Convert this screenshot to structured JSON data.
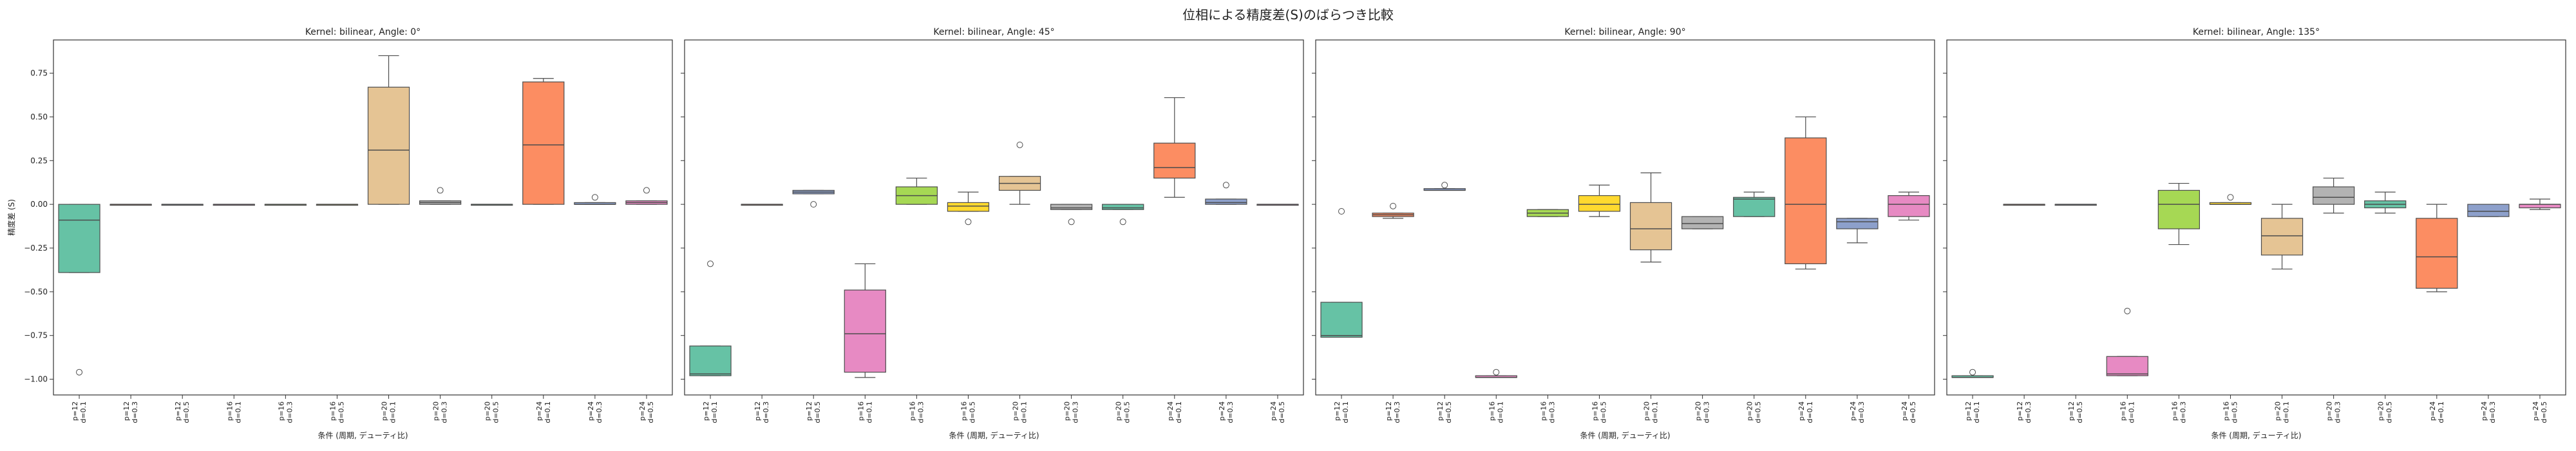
{
  "figure": {
    "title": "位相による精度差(S)のばらつき比較"
  },
  "shared": {
    "ylabel": "精度差 (S)",
    "xlabel": "条件 (周期, デューティ比)",
    "yticks": [
      "0.75",
      "0.50",
      "0.25",
      "0.00",
      "−0.25",
      "−0.50",
      "−0.75",
      "−1.00"
    ],
    "categories": [
      [
        "p=12",
        "d=0.1"
      ],
      [
        "p=12",
        "d=0.3"
      ],
      [
        "p=12",
        "d=0.5"
      ],
      [
        "p=16",
        "d=0.1"
      ],
      [
        "p=16",
        "d=0.3"
      ],
      [
        "p=16",
        "d=0.5"
      ],
      [
        "p=20",
        "d=0.1"
      ],
      [
        "p=20",
        "d=0.3"
      ],
      [
        "p=20",
        "d=0.5"
      ],
      [
        "p=24",
        "d=0.1"
      ],
      [
        "p=24",
        "d=0.3"
      ],
      [
        "p=24",
        "d=0.5"
      ]
    ],
    "palette": [
      "#66c2a5",
      "#fc8d62",
      "#8da0cb",
      "#e78ac3",
      "#a6d854",
      "#ffd92f",
      "#e5c494",
      "#b3b3b3",
      "#66c2a5",
      "#fc8d62",
      "#8da0cb",
      "#e78ac3"
    ]
  },
  "chart_data": [
    {
      "type": "box",
      "title": "Kernel: bilinear, Angle: 0°",
      "ylim": [
        -1.09,
        0.94
      ],
      "boxes": [
        {
          "whislo": -0.39,
          "q1": -0.39,
          "med": -0.09,
          "q3": 0.0,
          "whishi": 0.0,
          "fliers": [
            -0.96
          ]
        },
        {
          "whislo": 0.0,
          "q1": 0.0,
          "med": 0.0,
          "q3": 0.0,
          "whishi": 0.0,
          "fliers": []
        },
        {
          "whislo": 0.0,
          "q1": 0.0,
          "med": 0.0,
          "q3": 0.0,
          "whishi": 0.0,
          "fliers": []
        },
        {
          "whislo": 0.0,
          "q1": 0.0,
          "med": 0.0,
          "q3": 0.0,
          "whishi": 0.0,
          "fliers": []
        },
        {
          "whislo": 0.0,
          "q1": 0.0,
          "med": 0.0,
          "q3": 0.0,
          "whishi": 0.0,
          "fliers": []
        },
        {
          "whislo": 0.0,
          "q1": 0.0,
          "med": 0.0,
          "q3": 0.0,
          "whishi": 0.0,
          "fliers": []
        },
        {
          "whislo": 0.0,
          "q1": 0.0,
          "med": 0.31,
          "q3": 0.67,
          "whishi": 0.85,
          "fliers": []
        },
        {
          "whislo": 0.0,
          "q1": 0.0,
          "med": 0.01,
          "q3": 0.02,
          "whishi": 0.02,
          "fliers": [
            0.08
          ]
        },
        {
          "whislo": 0.0,
          "q1": 0.0,
          "med": 0.0,
          "q3": 0.0,
          "whishi": 0.0,
          "fliers": []
        },
        {
          "whislo": 0.0,
          "q1": 0.0,
          "med": 0.34,
          "q3": 0.7,
          "whishi": 0.72,
          "fliers": []
        },
        {
          "whislo": 0.0,
          "q1": 0.0,
          "med": 0.0,
          "q3": 0.01,
          "whishi": 0.01,
          "fliers": [
            0.04
          ]
        },
        {
          "whislo": 0.0,
          "q1": 0.0,
          "med": 0.01,
          "q3": 0.02,
          "whishi": 0.02,
          "fliers": [
            0.08
          ]
        }
      ]
    },
    {
      "type": "box",
      "title": "Kernel: bilinear, Angle: 45°",
      "ylim": [
        -1.09,
        0.94
      ],
      "boxes": [
        {
          "whislo": -0.98,
          "q1": -0.98,
          "med": -0.97,
          "q3": -0.81,
          "whishi": -0.81,
          "fliers": [
            -0.34
          ]
        },
        {
          "whislo": 0.0,
          "q1": 0.0,
          "med": 0.0,
          "q3": 0.0,
          "whishi": 0.0,
          "fliers": []
        },
        {
          "whislo": 0.06,
          "q1": 0.06,
          "med": 0.07,
          "q3": 0.08,
          "whishi": 0.08,
          "fliers": [
            0.0
          ]
        },
        {
          "whislo": -0.99,
          "q1": -0.96,
          "med": -0.74,
          "q3": -0.49,
          "whishi": -0.34,
          "fliers": []
        },
        {
          "whislo": 0.0,
          "q1": 0.0,
          "med": 0.05,
          "q3": 0.1,
          "whishi": 0.15,
          "fliers": []
        },
        {
          "whislo": -0.04,
          "q1": -0.04,
          "med": -0.01,
          "q3": 0.01,
          "whishi": 0.07,
          "fliers": [
            -0.1
          ]
        },
        {
          "whislo": 0.0,
          "q1": 0.08,
          "med": 0.12,
          "q3": 0.16,
          "whishi": 0.16,
          "fliers": [
            0.34
          ]
        },
        {
          "whislo": -0.03,
          "q1": -0.03,
          "med": -0.02,
          "q3": 0.0,
          "whishi": 0.0,
          "fliers": [
            -0.1
          ]
        },
        {
          "whislo": -0.03,
          "q1": -0.03,
          "med": -0.02,
          "q3": 0.0,
          "whishi": 0.0,
          "fliers": [
            -0.1
          ]
        },
        {
          "whislo": 0.04,
          "q1": 0.15,
          "med": 0.21,
          "q3": 0.35,
          "whishi": 0.61,
          "fliers": []
        },
        {
          "whislo": 0.0,
          "q1": 0.0,
          "med": 0.01,
          "q3": 0.03,
          "whishi": 0.03,
          "fliers": [
            0.11
          ]
        },
        {
          "whislo": 0.0,
          "q1": 0.0,
          "med": 0.0,
          "q3": 0.0,
          "whishi": 0.0,
          "fliers": []
        }
      ]
    },
    {
      "type": "box",
      "title": "Kernel: bilinear, Angle: 90°",
      "ylim": [
        -1.09,
        0.94
      ],
      "boxes": [
        {
          "whislo": -0.76,
          "q1": -0.76,
          "med": -0.75,
          "q3": -0.56,
          "whishi": -0.56,
          "fliers": [
            -0.04
          ]
        },
        {
          "whislo": -0.08,
          "q1": -0.07,
          "med": -0.06,
          "q3": -0.05,
          "whishi": -0.05,
          "fliers": [
            -0.01
          ]
        },
        {
          "whislo": 0.08,
          "q1": 0.08,
          "med": 0.08,
          "q3": 0.09,
          "whishi": 0.09,
          "fliers": [
            0.11
          ]
        },
        {
          "whislo": -0.99,
          "q1": -0.99,
          "med": -0.99,
          "q3": -0.98,
          "whishi": -0.98,
          "fliers": [
            -0.96
          ]
        },
        {
          "whislo": -0.07,
          "q1": -0.07,
          "med": -0.05,
          "q3": -0.03,
          "whishi": -0.03,
          "fliers": []
        },
        {
          "whislo": -0.07,
          "q1": -0.04,
          "med": 0.0,
          "q3": 0.05,
          "whishi": 0.11,
          "fliers": []
        },
        {
          "whislo": -0.33,
          "q1": -0.26,
          "med": -0.14,
          "q3": 0.01,
          "whishi": 0.18,
          "fliers": []
        },
        {
          "whislo": -0.14,
          "q1": -0.14,
          "med": -0.11,
          "q3": -0.07,
          "whishi": -0.07,
          "fliers": []
        },
        {
          "whislo": -0.07,
          "q1": -0.07,
          "med": 0.03,
          "q3": 0.04,
          "whishi": 0.07,
          "fliers": []
        },
        {
          "whislo": -0.37,
          "q1": -0.34,
          "med": 0.0,
          "q3": 0.38,
          "whishi": 0.5,
          "fliers": []
        },
        {
          "whislo": -0.22,
          "q1": -0.14,
          "med": -0.1,
          "q3": -0.08,
          "whishi": -0.08,
          "fliers": []
        },
        {
          "whislo": -0.09,
          "q1": -0.07,
          "med": 0.0,
          "q3": 0.05,
          "whishi": 0.07,
          "fliers": []
        }
      ]
    },
    {
      "type": "box",
      "title": "Kernel: bilinear, Angle: 135°",
      "ylim": [
        -1.09,
        0.94
      ],
      "boxes": [
        {
          "whislo": -0.99,
          "q1": -0.99,
          "med": -0.99,
          "q3": -0.98,
          "whishi": -0.98,
          "fliers": [
            -0.96
          ]
        },
        {
          "whislo": 0.0,
          "q1": 0.0,
          "med": 0.0,
          "q3": 0.0,
          "whishi": 0.0,
          "fliers": []
        },
        {
          "whislo": 0.0,
          "q1": 0.0,
          "med": 0.0,
          "q3": 0.0,
          "whishi": 0.0,
          "fliers": []
        },
        {
          "whislo": -0.98,
          "q1": -0.98,
          "med": -0.97,
          "q3": -0.87,
          "whishi": -0.87,
          "fliers": [
            -0.61
          ]
        },
        {
          "whislo": -0.23,
          "q1": -0.14,
          "med": 0.0,
          "q3": 0.08,
          "whishi": 0.12,
          "fliers": []
        },
        {
          "whislo": 0.0,
          "q1": 0.0,
          "med": 0.0,
          "q3": 0.01,
          "whishi": 0.01,
          "fliers": [
            0.04
          ]
        },
        {
          "whislo": -0.37,
          "q1": -0.29,
          "med": -0.18,
          "q3": -0.08,
          "whishi": 0.0,
          "fliers": []
        },
        {
          "whislo": -0.05,
          "q1": 0.0,
          "med": 0.04,
          "q3": 0.1,
          "whishi": 0.15,
          "fliers": []
        },
        {
          "whislo": -0.05,
          "q1": -0.02,
          "med": 0.0,
          "q3": 0.02,
          "whishi": 0.07,
          "fliers": []
        },
        {
          "whislo": -0.5,
          "q1": -0.48,
          "med": -0.3,
          "q3": -0.08,
          "whishi": 0.0,
          "fliers": []
        },
        {
          "whislo": -0.07,
          "q1": -0.07,
          "med": -0.04,
          "q3": 0.0,
          "whishi": 0.0,
          "fliers": []
        },
        {
          "whislo": -0.03,
          "q1": -0.02,
          "med": 0.0,
          "q3": 0.0,
          "whishi": 0.03,
          "fliers": []
        }
      ]
    }
  ]
}
